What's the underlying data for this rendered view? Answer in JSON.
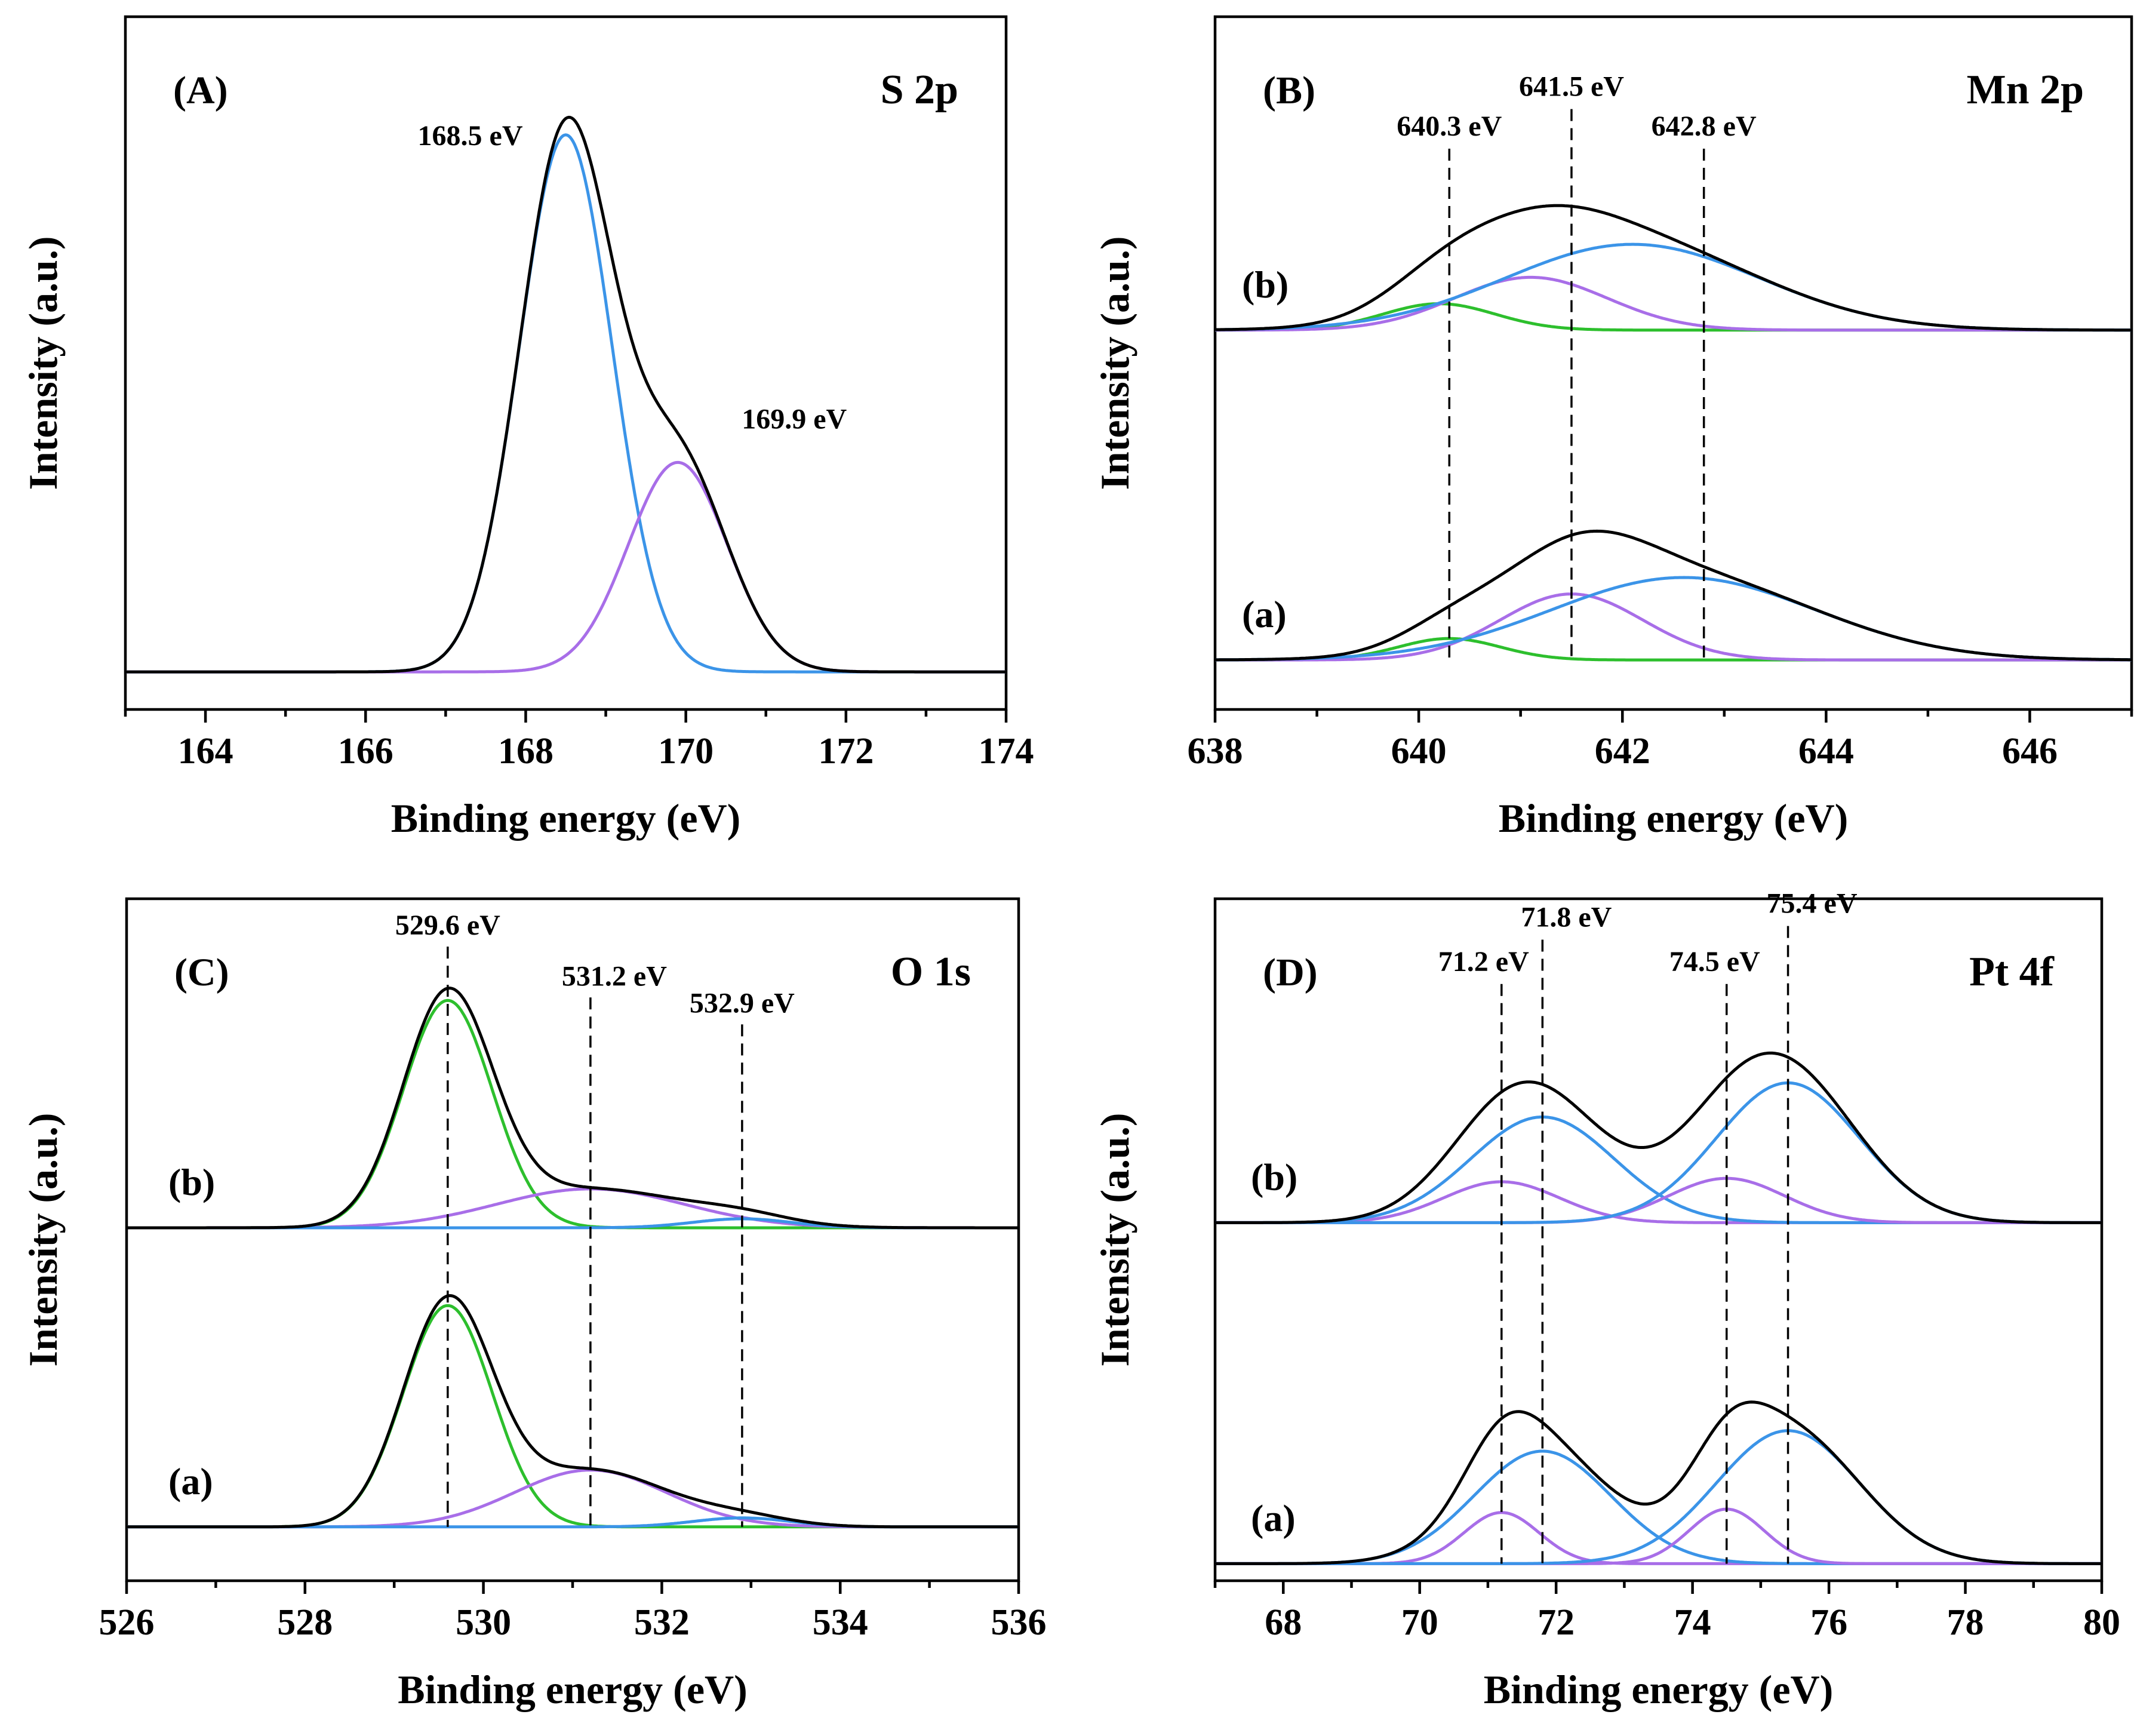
{
  "figure": {
    "axis_title_y": "Intensity (a.u.)"
  },
  "colors": {
    "total": "#000000",
    "blue": "#3b94e8",
    "purple": "#a86ee8",
    "green": "#2dbf2d"
  },
  "chart_data": [
    {
      "id": "A",
      "type": "line",
      "panel_label": "(A)",
      "title": "S 2p",
      "xlabel": "Binding energy (eV)",
      "ylabel": "Intensity (a.u.)",
      "xlim": [
        163,
        174
      ],
      "xticks": [
        164,
        166,
        168,
        170,
        172,
        174
      ],
      "grid": false,
      "traces": [
        {
          "name": "baseline",
          "baseline": 0.0,
          "peaks": []
        },
        {
          "name": "envelope",
          "peaks": []
        }
      ],
      "samples": [
        {
          "sample_label": "",
          "baseline": 0.0,
          "components": [
            {
              "color": "blue",
              "center": 168.5,
              "height": 1.0,
              "sigma": 0.58
            },
            {
              "color": "purple",
              "center": 169.9,
              "height": 0.39,
              "sigma": 0.62
            }
          ]
        }
      ],
      "ylim": [
        -0.07,
        1.22
      ],
      "peak_markers": [
        {
          "label": "168.5 eV",
          "x": 168.5,
          "level": 0.97,
          "dashed": false
        },
        {
          "label": "169.9 eV",
          "x": 169.9,
          "level": 0.42,
          "dashed": false
        }
      ]
    },
    {
      "id": "B",
      "type": "line",
      "panel_label": "(B)",
      "title": "Mn 2p",
      "xlabel": "Binding energy (eV)",
      "ylabel": "Intensity (a.u.)",
      "xlim": [
        638,
        647
      ],
      "xticks": [
        638,
        640,
        642,
        644,
        646
      ],
      "grid": false,
      "samples": [
        {
          "sample_label": "(b)",
          "baseline": 1.0,
          "components": [
            {
              "color": "green",
              "center": 640.2,
              "height": 0.08,
              "sigma": 0.55
            },
            {
              "color": "purple",
              "center": 641.1,
              "height": 0.16,
              "sigma": 0.75
            },
            {
              "color": "blue",
              "center": 642.1,
              "height": 0.26,
              "sigma": 1.25
            }
          ]
        },
        {
          "sample_label": "(a)",
          "baseline": 0.0,
          "components": [
            {
              "color": "green",
              "center": 640.3,
              "height": 0.065,
              "sigma": 0.5
            },
            {
              "color": "purple",
              "center": 641.5,
              "height": 0.2,
              "sigma": 0.7
            },
            {
              "color": "blue",
              "center": 642.6,
              "height": 0.25,
              "sigma": 1.3
            }
          ]
        }
      ],
      "ylim": [
        -0.15,
        1.95
      ],
      "peak_markers": [
        {
          "label": "640.3 eV",
          "x": 640.3,
          "level": 1.55,
          "dashed": true
        },
        {
          "label": "641.5 eV",
          "x": 641.5,
          "level": 1.67,
          "dashed": true
        },
        {
          "label": "642.8 eV",
          "x": 642.8,
          "level": 1.55,
          "dashed": true
        }
      ]
    },
    {
      "id": "C",
      "type": "line",
      "panel_label": "(C)",
      "title": "O 1s",
      "xlabel": "Binding energy (eV)",
      "ylabel": "Intensity (a.u.)",
      "xlim": [
        526,
        536
      ],
      "xticks": [
        526,
        528,
        530,
        532,
        534,
        536
      ],
      "grid": false,
      "samples": [
        {
          "sample_label": "(b)",
          "baseline": 1.0,
          "components": [
            {
              "color": "green",
              "center": 529.6,
              "height": 0.76,
              "sigma": 0.5
            },
            {
              "color": "purple",
              "center": 531.2,
              "height": 0.13,
              "sigma": 1.05
            },
            {
              "color": "blue",
              "center": 532.9,
              "height": 0.03,
              "sigma": 0.55
            }
          ]
        },
        {
          "sample_label": "(a)",
          "baseline": 0.0,
          "components": [
            {
              "color": "green",
              "center": 529.6,
              "height": 0.74,
              "sigma": 0.5
            },
            {
              "color": "purple",
              "center": 531.2,
              "height": 0.19,
              "sigma": 0.85
            },
            {
              "color": "blue",
              "center": 532.9,
              "height": 0.03,
              "sigma": 0.55
            }
          ]
        }
      ],
      "ylim": [
        -0.18,
        2.1
      ],
      "peak_markers": [
        {
          "label": "529.6 eV",
          "x": 529.6,
          "level": 1.94,
          "dashed": true
        },
        {
          "label": "531.2 eV",
          "x": 531.2,
          "level": 1.77,
          "dashed": true
        },
        {
          "label": "532.9 eV",
          "x": 532.9,
          "level": 1.68,
          "dashed": true
        }
      ]
    },
    {
      "id": "D",
      "type": "line",
      "panel_label": "(D)",
      "title": "Pt 4f",
      "xlabel": "Binding energy (eV)",
      "ylabel": "Intensity (a.u.)",
      "xlim": [
        67,
        80
      ],
      "xticks": [
        68,
        70,
        72,
        74,
        76,
        78,
        80
      ],
      "grid": false,
      "samples": [
        {
          "sample_label": "(b)",
          "baseline": 1.0,
          "components": [
            {
              "color": "purple",
              "center": 71.2,
              "height": 0.12,
              "sigma": 0.85
            },
            {
              "color": "blue",
              "center": 71.8,
              "height": 0.31,
              "sigma": 1.05
            },
            {
              "color": "purple",
              "center": 74.5,
              "height": 0.13,
              "sigma": 0.85
            },
            {
              "color": "blue",
              "center": 75.4,
              "height": 0.41,
              "sigma": 1.05
            }
          ]
        },
        {
          "sample_label": "(a)",
          "baseline": 0.0,
          "components": [
            {
              "color": "purple",
              "center": 71.2,
              "height": 0.15,
              "sigma": 0.55
            },
            {
              "color": "blue",
              "center": 71.8,
              "height": 0.33,
              "sigma": 1.0
            },
            {
              "color": "purple",
              "center": 74.5,
              "height": 0.16,
              "sigma": 0.55
            },
            {
              "color": "blue",
              "center": 75.4,
              "height": 0.39,
              "sigma": 1.05
            }
          ]
        }
      ],
      "ylim": [
        -0.05,
        1.95
      ],
      "peak_markers": [
        {
          "label": "71.2 eV",
          "x": 71.2,
          "level": 1.7,
          "dashed": true
        },
        {
          "label": "71.8 eV",
          "x": 71.8,
          "level": 1.83,
          "dashed": true
        },
        {
          "label": "74.5 eV",
          "x": 74.5,
          "level": 1.7,
          "dashed": true
        },
        {
          "label": "75.4 eV",
          "x": 75.4,
          "level": 1.87,
          "dashed": true
        }
      ]
    }
  ]
}
